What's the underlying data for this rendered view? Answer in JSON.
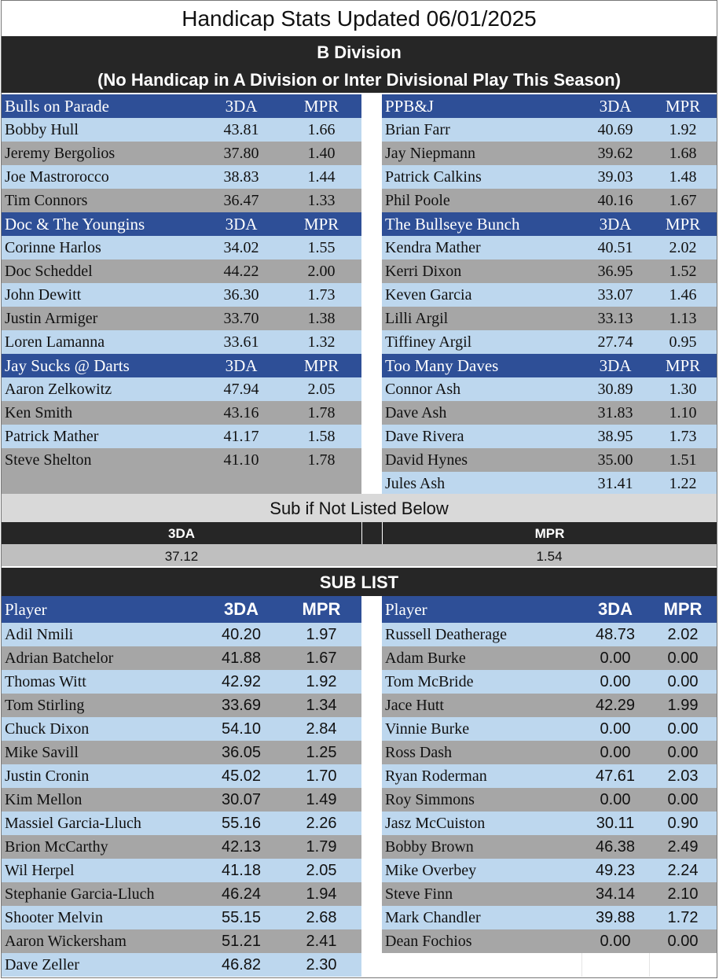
{
  "title": "Handicap Stats Updated 06/01/2025",
  "division": {
    "line1": "B Division",
    "line2": "(No Handicap in A Division or Inter Divisional Play This Season)"
  },
  "teams_left": [
    {
      "name": "Bulls on Parade",
      "h_3da": "3DA",
      "h_mpr": "MPR",
      "players": [
        {
          "name": "Bobby Hull",
          "tda": "43.81",
          "mpr": "1.66"
        },
        {
          "name": "Jeremy Bergolios",
          "tda": "37.80",
          "mpr": "1.40"
        },
        {
          "name": "Joe Mastrorocco",
          "tda": "38.83",
          "mpr": "1.44"
        },
        {
          "name": "Tim Connors",
          "tda": "36.47",
          "mpr": "1.33"
        }
      ]
    },
    {
      "name": "Doc & The Youngins",
      "h_3da": "3DA",
      "h_mpr": "MPR",
      "players": [
        {
          "name": "Corinne Harlos",
          "tda": "34.02",
          "mpr": "1.55"
        },
        {
          "name": "Doc Scheddel",
          "tda": "44.22",
          "mpr": "2.00"
        },
        {
          "name": "John Dewitt",
          "tda": "36.30",
          "mpr": "1.73"
        },
        {
          "name": "Justin Armiger",
          "tda": "33.70",
          "mpr": "1.38"
        },
        {
          "name": "Loren Lamanna",
          "tda": "33.61",
          "mpr": "1.32"
        }
      ]
    },
    {
      "name": "Jay Sucks @ Darts",
      "h_3da": "3DA",
      "h_mpr": "MPR",
      "players": [
        {
          "name": "Aaron Zelkowitz",
          "tda": "47.94",
          "mpr": "2.05"
        },
        {
          "name": "Ken Smith",
          "tda": "43.16",
          "mpr": "1.78"
        },
        {
          "name": "Patrick Mather",
          "tda": "41.17",
          "mpr": "1.58"
        },
        {
          "name": "Steve Shelton",
          "tda": "41.10",
          "mpr": "1.78"
        }
      ]
    }
  ],
  "teams_right": [
    {
      "name": "PPB&J",
      "h_3da": "3DA",
      "h_mpr": "MPR",
      "players": [
        {
          "name": "Brian Farr",
          "tda": "40.69",
          "mpr": "1.92"
        },
        {
          "name": "Jay Niepmann",
          "tda": "39.62",
          "mpr": "1.68"
        },
        {
          "name": "Patrick Calkins",
          "tda": "39.03",
          "mpr": "1.48"
        },
        {
          "name": "Phil Poole",
          "tda": "40.16",
          "mpr": "1.67"
        }
      ]
    },
    {
      "name": "The Bullseye Bunch",
      "h_3da": "3DA",
      "h_mpr": "MPR",
      "players": [
        {
          "name": "Kendra Mather",
          "tda": "40.51",
          "mpr": "2.02"
        },
        {
          "name": "Kerri Dixon",
          "tda": "36.95",
          "mpr": "1.52"
        },
        {
          "name": "Keven Garcia",
          "tda": "33.07",
          "mpr": "1.46"
        },
        {
          "name": "Lilli Argil",
          "tda": "33.13",
          "mpr": "1.13"
        },
        {
          "name": "Tiffiney Argil",
          "tda": "27.74",
          "mpr": "0.95"
        }
      ]
    },
    {
      "name": "Too Many Daves",
      "h_3da": "3DA",
      "h_mpr": "MPR",
      "players": [
        {
          "name": "Connor Ash",
          "tda": "30.89",
          "mpr": "1.30"
        },
        {
          "name": "Dave Ash",
          "tda": "31.83",
          "mpr": "1.10"
        },
        {
          "name": "Dave Rivera",
          "tda": "38.95",
          "mpr": "1.73"
        },
        {
          "name": "David Hynes",
          "tda": "35.00",
          "mpr": "1.51"
        },
        {
          "name": "Jules Ash",
          "tda": "31.41",
          "mpr": "1.22"
        }
      ]
    }
  ],
  "sub_default": {
    "heading": "Sub if Not Listed Below",
    "label_3da": "3DA",
    "label_mpr": "MPR",
    "value_3da": "37.12",
    "value_mpr": "1.54"
  },
  "sub_list": {
    "heading": "SUB LIST",
    "h_player": "Player",
    "h_3da": "3DA",
    "h_mpr": "MPR",
    "left": [
      {
        "name": "Adil Nmili",
        "tda": "40.20",
        "mpr": "1.97"
      },
      {
        "name": "Adrian Batchelor",
        "tda": "41.88",
        "mpr": "1.67"
      },
      {
        "name": "Thomas Witt",
        "tda": "42.92",
        "mpr": "1.92"
      },
      {
        "name": "Tom Stirling",
        "tda": "33.69",
        "mpr": "1.34"
      },
      {
        "name": "Chuck Dixon",
        "tda": "54.10",
        "mpr": "2.84"
      },
      {
        "name": "Mike Savill",
        "tda": "36.05",
        "mpr": "1.25"
      },
      {
        "name": "Justin Cronin",
        "tda": "45.02",
        "mpr": "1.70"
      },
      {
        "name": "Kim Mellon",
        "tda": "30.07",
        "mpr": "1.49"
      },
      {
        "name": "Massiel Garcia-Lluch",
        "tda": "55.16",
        "mpr": "2.26"
      },
      {
        "name": "Brion McCarthy",
        "tda": "42.13",
        "mpr": "1.79"
      },
      {
        "name": "Wil Herpel",
        "tda": "41.18",
        "mpr": "2.05"
      },
      {
        "name": "Stephanie Garcia-Lluch",
        "tda": "46.24",
        "mpr": "1.94"
      },
      {
        "name": "Shooter Melvin",
        "tda": "55.15",
        "mpr": "2.68"
      },
      {
        "name": "Aaron Wickersham",
        "tda": "51.21",
        "mpr": "2.41"
      },
      {
        "name": "Dave Zeller",
        "tda": "46.82",
        "mpr": "2.30"
      }
    ],
    "right": [
      {
        "name": "Russell Deatherage",
        "tda": "48.73",
        "mpr": "2.02"
      },
      {
        "name": "Adam Burke",
        "tda": "0.00",
        "mpr": "0.00"
      },
      {
        "name": "Tom McBride",
        "tda": "0.00",
        "mpr": "0.00"
      },
      {
        "name": "Jace Hutt",
        "tda": "42.29",
        "mpr": "1.99"
      },
      {
        "name": "Vinnie Burke",
        "tda": "0.00",
        "mpr": "0.00"
      },
      {
        "name": "Ross Dash",
        "tda": "0.00",
        "mpr": "0.00"
      },
      {
        "name": "Ryan Roderman",
        "tda": "47.61",
        "mpr": "2.03"
      },
      {
        "name": "Roy Simmons",
        "tda": "0.00",
        "mpr": "0.00"
      },
      {
        "name": "Jasz McCuiston",
        "tda": "30.11",
        "mpr": "0.90"
      },
      {
        "name": "Bobby Brown",
        "tda": "46.38",
        "mpr": "2.49"
      },
      {
        "name": "Mike Overbey",
        "tda": "49.23",
        "mpr": "2.24"
      },
      {
        "name": "Steve Finn",
        "tda": "34.14",
        "mpr": "2.10"
      },
      {
        "name": "Mark Chandler",
        "tda": "39.88",
        "mpr": "1.72"
      },
      {
        "name": "Dean Fochios",
        "tda": "0.00",
        "mpr": "0.00"
      }
    ]
  }
}
